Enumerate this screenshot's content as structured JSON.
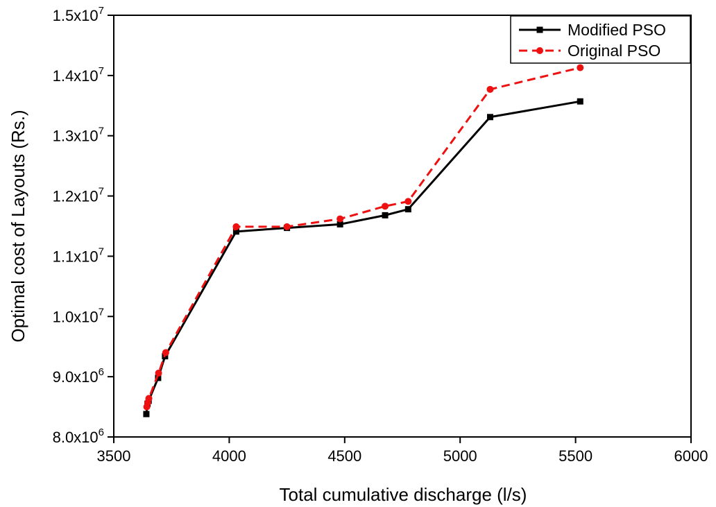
{
  "chart_data": {
    "type": "line",
    "title": "",
    "xlabel": "Total cumulative discharge (l/s)",
    "ylabel": "Optimal cost of Layouts (Rs.)",
    "xlim": [
      3500,
      6000
    ],
    "ylim": [
      8000000,
      15000000
    ],
    "x_ticks": [
      3500,
      4000,
      4500,
      5000,
      5500,
      6000
    ],
    "x_tick_labels": [
      "3500",
      "4000",
      "4500",
      "5000",
      "5500",
      "6000"
    ],
    "y_ticks": [
      8000000,
      9000000,
      10000000,
      11000000,
      12000000,
      13000000,
      14000000,
      15000000
    ],
    "y_tick_labels": [
      {
        "mantissa": "8.0x10",
        "exponent": "6"
      },
      {
        "mantissa": "9.0x10",
        "exponent": "6"
      },
      {
        "mantissa": "1.0x10",
        "exponent": "7"
      },
      {
        "mantissa": "1.1x10",
        "exponent": "7"
      },
      {
        "mantissa": "1.2x10",
        "exponent": "7"
      },
      {
        "mantissa": "1.3x10",
        "exponent": "7"
      },
      {
        "mantissa": "1.4x10",
        "exponent": "7"
      },
      {
        "mantissa": "1.5x10",
        "exponent": "7"
      }
    ],
    "grid": false,
    "legend_position": "top-right",
    "series": [
      {
        "name": "Modified PSO",
        "color": "#000000",
        "line_style": "solid",
        "marker": "square",
        "x": [
          3641,
          3646,
          3651,
          3692,
          3722,
          4030,
          4250,
          4480,
          4675,
          4775,
          5130,
          5520
        ],
        "y": [
          8380000,
          8550000,
          8600000,
          8980000,
          9340000,
          11410000,
          11470000,
          11530000,
          11680000,
          11780000,
          13310000,
          13570000
        ]
      },
      {
        "name": "Original PSO",
        "color": "#ee1111",
        "line_style": "dashed",
        "marker": "circle",
        "x": [
          3643,
          3647,
          3652,
          3694,
          3725,
          4030,
          4250,
          4480,
          4675,
          4775,
          5130,
          5520
        ],
        "y": [
          8500000,
          8570000,
          8640000,
          9060000,
          9400000,
          11490000,
          11490000,
          11620000,
          11830000,
          11910000,
          13770000,
          14130000
        ]
      }
    ]
  }
}
